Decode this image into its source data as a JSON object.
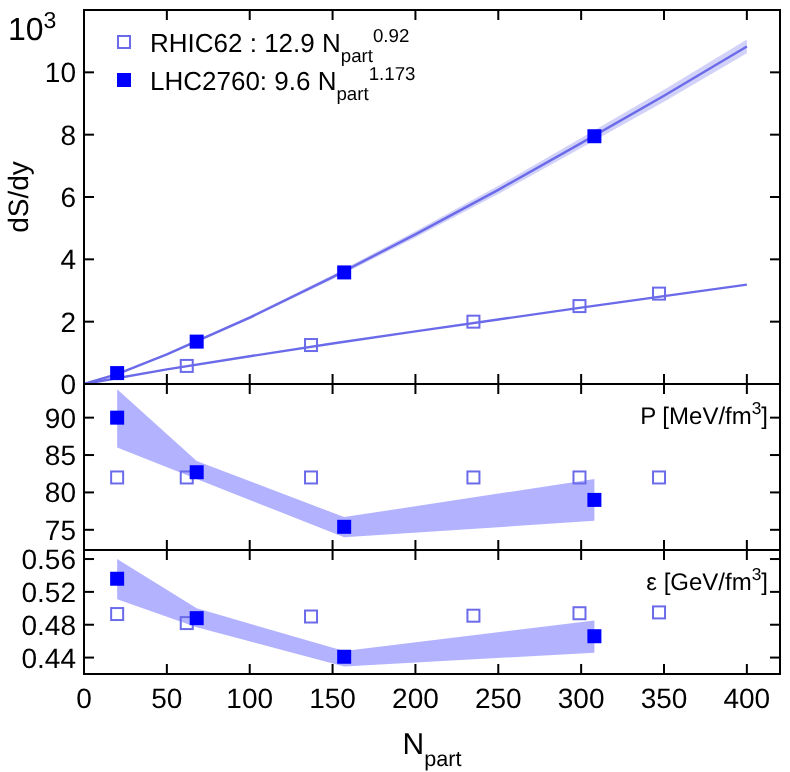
{
  "chart_data": [
    {
      "type": "line",
      "ylabel": "dS/dy",
      "annotations": [
        "10$^{3}$"
      ],
      "xlim": [
        0,
        420
      ],
      "xticks": [
        0,
        50,
        100,
        150,
        200,
        250,
        300,
        350,
        400
      ],
      "ylim": [
        0,
        12
      ],
      "yticks": [
        0,
        2,
        4,
        6,
        8,
        10
      ],
      "tick_labels": "y",
      "legend": "top left",
      "series": [
        {
          "color": "#6b6bea",
          "x": [
            0,
            50,
            100,
            150,
            200,
            250,
            300,
            350,
            400
          ],
          "values": [
            0,
            0.47,
            0.89,
            1.3,
            1.69,
            2.07,
            2.45,
            2.82,
            3.19
          ]
        },
        {
          "color": "#6b6bea",
          "x": [
            0,
            20,
            50,
            100,
            150,
            200,
            250,
            300,
            350,
            400
          ],
          "values": [
            0,
            0.32,
            0.95,
            2.13,
            3.43,
            4.8,
            6.23,
            7.73,
            9.25,
            10.83
          ],
          "lower": [
            0,
            0.31,
            0.92,
            2.08,
            3.36,
            4.7,
            6.1,
            7.57,
            9.06,
            10.61
          ],
          "upper": [
            0,
            0.33,
            0.98,
            2.18,
            3.5,
            4.9,
            6.36,
            7.89,
            9.44,
            11.05
          ]
        },
        {
          "type": "scatter",
          "name": "RHIC62  : 12.9 N$_{part}$$^{0.92}$",
          "color": "#6b6bea",
          "marker": "square-open",
          "x": [
            62,
            137,
            235,
            299,
            347
          ],
          "values": [
            0.58,
            1.25,
            2.0,
            2.5,
            2.9
          ]
        },
        {
          "type": "scatter",
          "name": "LHC2760: 9.6 N$_{part}$$^{1.173}$",
          "color": "#0000ff",
          "marker": "square",
          "x": [
            20,
            68,
            157,
            308
          ],
          "values": [
            0.35,
            1.36,
            3.58,
            7.95
          ]
        }
      ]
    },
    {
      "type": "scatter",
      "annotations": [
        "P [MeV/fm$^{3}$]"
      ],
      "xlim": [
        0,
        420
      ],
      "xticks": [
        0,
        50,
        100,
        150,
        200,
        250,
        300,
        350,
        400
      ],
      "ylim": [
        72.3,
        94.5
      ],
      "yticks": [
        75,
        80,
        85,
        90
      ],
      "tick_labels": "y",
      "series": [
        {
          "color": "#6b6bea",
          "marker": "square-open",
          "x": [
            20,
            62,
            137,
            235,
            299,
            347
          ],
          "values": [
            82,
            82,
            82,
            82,
            82,
            82
          ]
        },
        {
          "color": "#0000ff",
          "marker": "square",
          "x": [
            20,
            68,
            157,
            308
          ],
          "values": [
            90,
            82.7,
            75.4,
            79
          ],
          "lower": [
            86,
            81.8,
            74,
            76.2
          ],
          "upper": [
            93.8,
            84.2,
            76.7,
            81.8
          ]
        }
      ]
    },
    {
      "type": "scatter",
      "xlabel": "N$_{part}$",
      "annotations": [
        "ε [GeV/fm$^{3}$]"
      ],
      "xlim": [
        0,
        420
      ],
      "xticks": [
        0,
        50,
        100,
        150,
        200,
        250,
        300,
        350,
        400
      ],
      "ylim": [
        0.42,
        0.571
      ],
      "yticks": [
        0.44,
        0.48,
        0.52,
        0.56
      ],
      "series": [
        {
          "color": "#6b6bea",
          "marker": "square-open",
          "x": [
            20,
            62,
            137,
            235,
            299,
            347
          ],
          "values": [
            0.493,
            0.482,
            0.49,
            0.491,
            0.494,
            0.495
          ]
        },
        {
          "color": "#0000ff",
          "marker": "square",
          "x": [
            20,
            68,
            157,
            308
          ],
          "values": [
            0.536,
            0.488,
            0.441,
            0.466
          ],
          "lower": [
            0.511,
            0.477,
            0.429,
            0.446
          ],
          "upper": [
            0.56,
            0.5,
            0.448,
            0.485
          ]
        }
      ]
    }
  ]
}
